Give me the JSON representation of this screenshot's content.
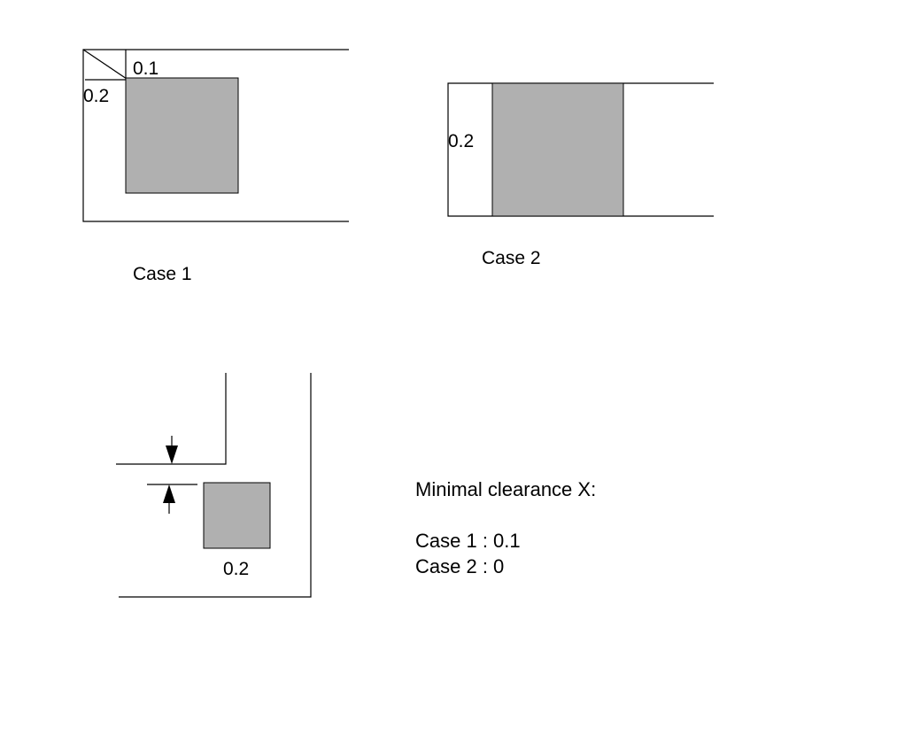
{
  "case1": {
    "caption": "Case 1",
    "label_top": "0.1",
    "label_left": "0.2"
  },
  "case2": {
    "caption": "Case 2",
    "label_left": "0.2"
  },
  "case3": {
    "label_pad": "0.2"
  },
  "notes": {
    "heading": "Minimal clearance X:",
    "line1": "Case 1 : 0.1",
    "line2": "Case 2 : 0"
  },
  "colors": {
    "pad_fill": "#b0b0b0",
    "line": "#000000"
  }
}
